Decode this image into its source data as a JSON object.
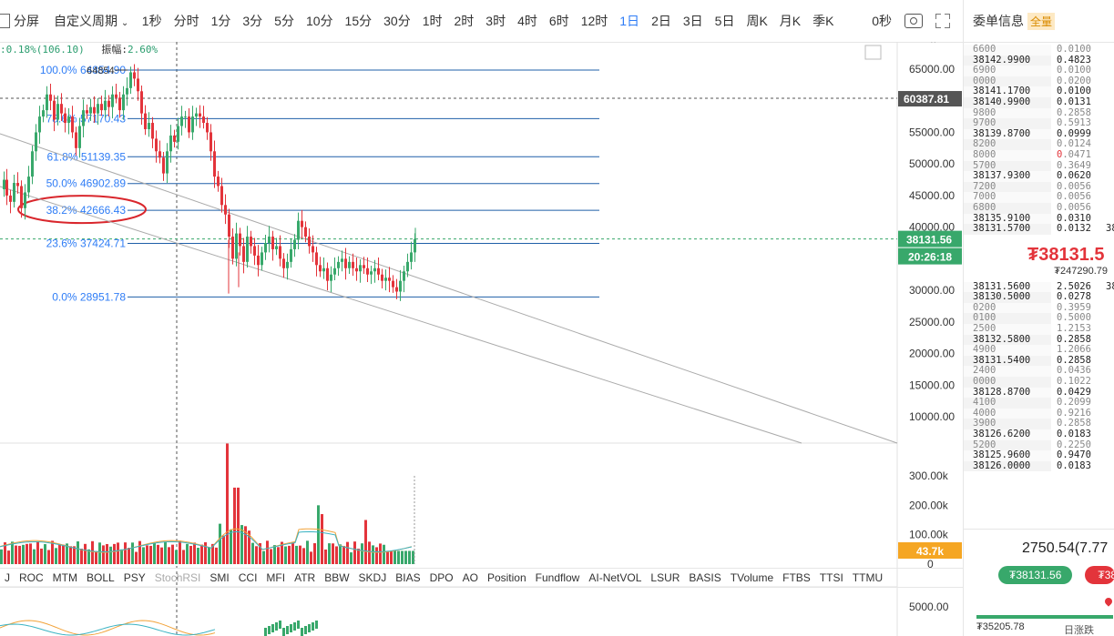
{
  "toolbar": {
    "split_label": "分屏",
    "custom_period": "自定义周期",
    "periods": [
      "1秒",
      "分时",
      "1分",
      "3分",
      "5分",
      "10分",
      "15分",
      "30分",
      "1时",
      "2时",
      "3时",
      "4时",
      "6时",
      "12时",
      "1日",
      "2日",
      "3日",
      "5日",
      "周K",
      "月K",
      "季K"
    ],
    "active_period": "1日",
    "countdown": "0秒"
  },
  "infobar": {
    "change": ":0.18%(106.10)",
    "amp_label": "振幅:",
    "amp_value": "2.60%"
  },
  "price_axis": {
    "ticks": [
      "65000.00",
      "60000.00",
      "55000.00",
      "50000.00",
      "45000.00",
      "40000.00",
      "35000.00",
      "30000.00",
      "25000.00",
      "20000.00",
      "15000.00",
      "10000.00"
    ],
    "marker_60387": "60387.81",
    "current_price": "38131.56",
    "timer": "20:26:18"
  },
  "fib": {
    "levels": [
      {
        "label": "100.0% 64854.90",
        "price": 64854.9
      },
      {
        "label": "78.6% 57170.43",
        "price": 57170.43
      },
      {
        "label": "61.8% 51139.35",
        "price": 51139.35
      },
      {
        "label": "50.0% 46902.89",
        "price": 46902.89
      },
      {
        "label": "38.2% 42666.43",
        "price": 42666.43
      },
      {
        "label": "23.6% 37424.71",
        "price": 37424.71
      },
      {
        "label": "0.0% 28951.78",
        "price": 28951.78
      }
    ],
    "extra_label": "64854",
    "circled": "38.2% 42666.43"
  },
  "volume_axis": {
    "ticks": [
      "300.00k",
      "200.00k",
      "100.00k",
      "0"
    ],
    "current": "43.7k"
  },
  "sub_axis": {
    "tick": "5000.00"
  },
  "indicators": [
    "J",
    "ROC",
    "MTM",
    "BOLL",
    "PSY",
    "StochRSI",
    "SMI",
    "CCI",
    "MFI",
    "ATR",
    "BBW",
    "SKDJ",
    "BIAS",
    "DPO",
    "AO",
    "Position",
    "Fundflow",
    "AI-NetVOL",
    "LSUR",
    "BASIS",
    "TVolume",
    "FTBS",
    "TTSI",
    "TTMU"
  ],
  "dim_indicator": "StochRSI",
  "orderbook": {
    "title": "委单信息",
    "badge": "全量",
    "asks": [
      [
        "6600",
        "0.0100"
      ],
      [
        "38142.9900",
        "0.4823"
      ],
      [
        "6900",
        "0.0100"
      ],
      [
        "0000",
        "0.0200"
      ],
      [
        "38141.1700",
        "0.0100"
      ],
      [
        "38140.9900",
        "0.0131"
      ],
      [
        "9800",
        "0.2858"
      ],
      [
        "9700",
        "0.5913"
      ],
      [
        "38139.8700",
        "0.0999"
      ],
      [
        "8200",
        "0.0124"
      ],
      [
        "8000",
        "0.0471"
      ],
      [
        "5700",
        "0.3649"
      ],
      [
        "38137.9300",
        "0.0620"
      ],
      [
        "7200",
        "0.0056"
      ],
      [
        "7000",
        "0.0056"
      ],
      [
        "6800",
        "0.0056"
      ],
      [
        "38135.9100",
        "0.0310"
      ],
      [
        "38131.5700",
        "0.0132"
      ]
    ],
    "mid_price": "₮38131.5",
    "mid_sub": "₮247290.79",
    "bids": [
      [
        "38131.5600",
        "2.5026"
      ],
      [
        "38130.5000",
        "0.0278"
      ],
      [
        "0200",
        "0.3959"
      ],
      [
        "0100",
        "0.5000"
      ],
      [
        "2500",
        "1.2153"
      ],
      [
        "38132.5800",
        "0.2858"
      ],
      [
        "4900",
        "1.2066"
      ],
      [
        "38131.5400",
        "0.2858"
      ],
      [
        "2400",
        "0.0436"
      ],
      [
        "0000",
        "0.1022"
      ],
      [
        "38128.8700",
        "0.0429"
      ],
      [
        "4100",
        "0.2099"
      ],
      [
        "4000",
        "0.9216"
      ],
      [
        "3900",
        "0.2858"
      ],
      [
        "38126.6200",
        "0.0183"
      ],
      [
        "5200",
        "0.2250"
      ],
      [
        "38125.9600",
        "0.9470"
      ],
      [
        "38126.0000",
        "0.0183"
      ]
    ],
    "side_tag": "38"
  },
  "summary": {
    "value": "2750.54(7.77",
    "buy_label": "₮38131.56",
    "sell_label": "₮38",
    "low": "₮35205.78",
    "label": "日涨跌"
  },
  "colors": {
    "up": "#e3343b",
    "down": "#38a86b",
    "blue": "#2f7df6",
    "fib": "#1f5fa8"
  }
}
